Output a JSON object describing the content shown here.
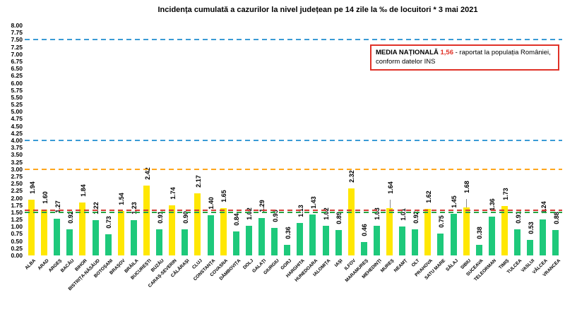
{
  "title": "Incidența cumulată a cazurilor la nivel județean pe 14 zile la ‰ de locuitori *  3 mai 2021",
  "legend_box": {
    "label": "MEDIA NAȚIONALĂ",
    "value": "1,56",
    "text": "- raportat la populația României, conform datelor INS",
    "accent_color": "#e03127"
  },
  "chart_data": {
    "type": "bar",
    "title": "Incidența cumulată a cazurilor la nivel județean pe 14 zile la ‰ de locuitori *  3 mai 2021",
    "xlabel": "",
    "ylabel": "",
    "ylim": [
      0,
      8
    ],
    "ytick_step": 0.25,
    "grid": false,
    "legend_position": "top-right",
    "categories": [
      "ALBA",
      "ARAD",
      "ARGEȘ",
      "BACĂU",
      "BIHOR",
      "BISTRIȚA-NĂSĂUD",
      "BOTOȘANI",
      "BRAȘOV",
      "BRĂILA",
      "BUCUREȘTI",
      "BUZĂU",
      "CARAȘ-SEVERIN",
      "CĂLĂRAȘI",
      "CLUJ",
      "CONSTANȚA",
      "COVASNA",
      "DÂMBOVIȚA",
      "DOLJ",
      "GALAȚI",
      "GIURGIU",
      "GORJ",
      "HARGHITA",
      "HUNEDOARA",
      "IALOMIȚA",
      "IAȘI",
      "ILFOV",
      "MARAMUREȘ",
      "MEHEDINȚI",
      "MUREȘ",
      "NEAMȚ",
      "OLT",
      "PRAHOVA",
      "SATU MARE",
      "SĂLAJ",
      "SIBIU",
      "SUCEAVA",
      "TELEORMAN",
      "TIMIȘ",
      "TULCEA",
      "VASLUI",
      "VÂLCEA",
      "VRANCEA"
    ],
    "values": [
      1.94,
      1.6,
      1.27,
      0.92,
      1.84,
      1.22,
      0.73,
      1.54,
      1.23,
      2.42,
      0.91,
      1.74,
      0.9,
      2.17,
      1.4,
      1.65,
      0.84,
      1.02,
      1.29,
      0.95,
      0.36,
      1.13,
      1.43,
      1.02,
      0.89,
      2.32,
      0.46,
      1.03,
      1.64,
      1.01,
      0.92,
      1.62,
      0.75,
      1.45,
      1.68,
      0.38,
      1.36,
      1.73,
      0.91,
      0.53,
      1.24,
      0.88
    ],
    "color_rule": {
      "threshold": 1.5,
      "at_or_above": "#ffe703",
      "below": "#1ec97b"
    },
    "callouts": [
      28,
      34
    ],
    "reference_lines": [
      {
        "y": 7.5,
        "color": "#3a9bd5",
        "style": "dashed",
        "name": "threshold-7-50"
      },
      {
        "y": 4.0,
        "color": "#3a9bd5",
        "style": "dashed",
        "name": "threshold-4-00"
      },
      {
        "y": 3.0,
        "color": "#ffa61c",
        "style": "dashed",
        "name": "threshold-3-00"
      },
      {
        "y": 1.56,
        "color": "#d23a34",
        "style": "dashed",
        "name": "national-average-1-56"
      },
      {
        "y": 1.5,
        "color": "#27a343",
        "style": "dashed",
        "name": "threshold-1-50"
      }
    ]
  }
}
